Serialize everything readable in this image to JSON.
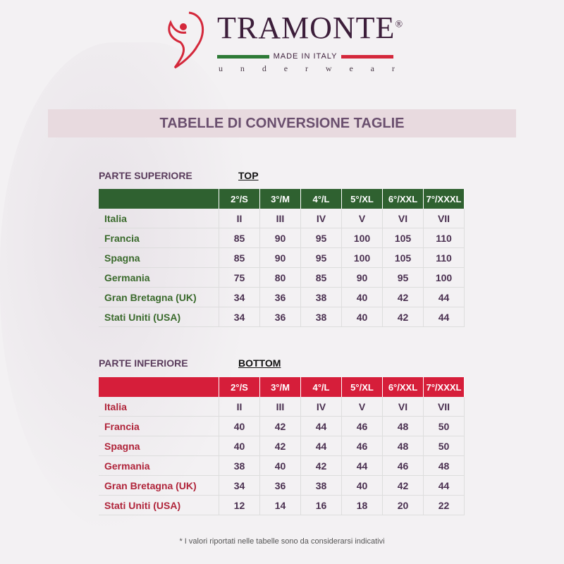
{
  "logo": {
    "brand": "TRAMONTE",
    "reg": "®",
    "tagline": "MADE IN ITALY",
    "sub": "underwear"
  },
  "title": "TABELLE DI CONVERSIONE TAGLIE",
  "colors": {
    "top_header": "#2f6130",
    "bottom_header": "#d61e3a"
  },
  "top": {
    "label": "PARTE SUPERIORE",
    "tag": "TOP",
    "headers": [
      "",
      "2°/S",
      "3°/M",
      "4°/L",
      "5°/XL",
      "6°/XXL",
      "7°/XXXL"
    ],
    "rows": [
      [
        "Italia",
        "II",
        "III",
        "IV",
        "V",
        "VI",
        "VII"
      ],
      [
        "Francia",
        "85",
        "90",
        "95",
        "100",
        "105",
        "110"
      ],
      [
        "Spagna",
        "85",
        "90",
        "95",
        "100",
        "105",
        "110"
      ],
      [
        "Germania",
        "75",
        "80",
        "85",
        "90",
        "95",
        "100"
      ],
      [
        "Gran Bretagna (UK)",
        "34",
        "36",
        "38",
        "40",
        "42",
        "44"
      ],
      [
        "Stati Uniti (USA)",
        "34",
        "36",
        "38",
        "40",
        "42",
        "44"
      ]
    ]
  },
  "bottom": {
    "label": "PARTE INFERIORE",
    "tag": "BOTTOM",
    "headers": [
      "",
      "2°/S",
      "3°/M",
      "4°/L",
      "5°/XL",
      "6°/XXL",
      "7°/XXXL"
    ],
    "rows": [
      [
        "Italia",
        "II",
        "III",
        "IV",
        "V",
        "VI",
        "VII"
      ],
      [
        "Francia",
        "40",
        "42",
        "44",
        "46",
        "48",
        "50"
      ],
      [
        "Spagna",
        "40",
        "42",
        "44",
        "46",
        "48",
        "50"
      ],
      [
        "Germania",
        "38",
        "40",
        "42",
        "44",
        "46",
        "48"
      ],
      [
        "Gran Bretagna (UK)",
        "34",
        "36",
        "38",
        "40",
        "42",
        "44"
      ],
      [
        "Stati Uniti (USA)",
        "12",
        "14",
        "16",
        "18",
        "20",
        "22"
      ]
    ]
  },
  "footnote": "* I valori riportati nelle tabelle sono da considerarsi indicativi"
}
